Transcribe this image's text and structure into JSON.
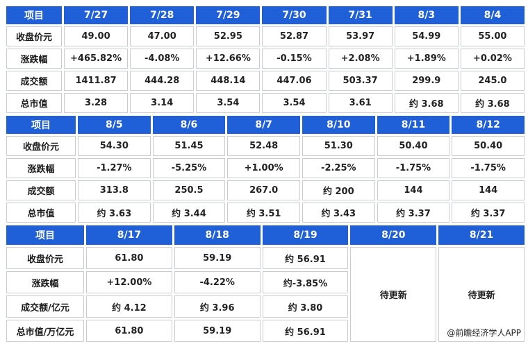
{
  "tables": [
    {
      "header": [
        "项目",
        "7/27",
        "7/28",
        "7/29",
        "7/30",
        "7/31",
        "8/3",
        "8/4"
      ],
      "rows": [
        [
          "收盘价元",
          "49.00",
          "47.00",
          "52.95",
          "52.87",
          "53.97",
          "54.99",
          "55.00"
        ],
        [
          "涨跌幅",
          "+465.82%",
          "-4.08%",
          "+12.66%",
          "-0.15%",
          "+2.08%",
          "+1.89%",
          "+0.02%"
        ],
        [
          "成交额",
          "1411.87",
          "444.28",
          "448.14",
          "447.06",
          "503.37",
          "299.9",
          "245.0"
        ],
        [
          "总市值",
          "3.28",
          "3.14",
          "3.54",
          "3.54",
          "3.61",
          "约 3.68",
          "约 3.68"
        ]
      ]
    },
    {
      "header": [
        "项目",
        "8/5",
        "8/6",
        "8/7",
        "8/10",
        "8/11",
        "8/12"
      ],
      "rows": [
        [
          "收盘价元",
          "54.30",
          "51.45",
          "52.48",
          "51.30",
          "50.40",
          "50.40"
        ],
        [
          "涨跌幅",
          "-1.27%",
          "-5.25%",
          "+1.00%",
          "-2.25%",
          "-1.75%",
          "-1.75%"
        ],
        [
          "成交额",
          "313.8",
          "250.5",
          "267.0",
          "约 200",
          "144",
          "144"
        ],
        [
          "总市值",
          "约 3.63",
          "约 3.44",
          "约 3.51",
          "约 3.43",
          "约 3.37",
          "约 3.37"
        ]
      ]
    },
    {
      "header": [
        "项目",
        "8/17",
        "8/18",
        "8/19",
        "8/20",
        "8/21"
      ],
      "rows": [
        [
          "收盘价元",
          "61.80",
          "59.19",
          "约 56.91"
        ],
        [
          "涨跌幅",
          "+12.00%",
          "-4.22%",
          "约-3.85%"
        ],
        [
          "成交额/亿元",
          "约 4.12",
          "约 3.96",
          "约 3.80"
        ],
        [
          "总市值/万亿元",
          "61.80",
          "59.19",
          "约 56.91"
        ]
      ],
      "pending": [
        "待更新",
        "待更新"
      ]
    }
  ],
  "footer": "@前瞻经济学人APP"
}
